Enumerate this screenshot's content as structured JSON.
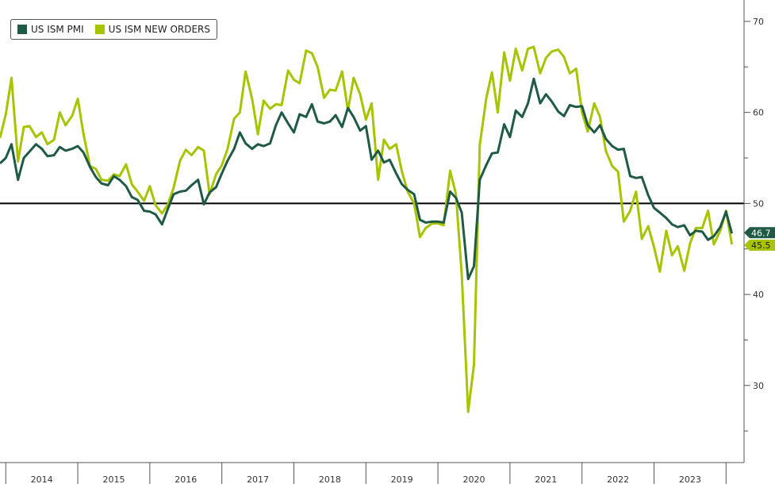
{
  "chart_data": {
    "type": "line",
    "title": "",
    "xlabel": "",
    "ylabel": "",
    "legend_position": "top-left",
    "grid": false,
    "x_tick_labels": [
      "2014",
      "2015",
      "2016",
      "2017",
      "2018",
      "2019",
      "2020",
      "2021",
      "2022",
      "2023"
    ],
    "y_ticks": [
      30,
      40,
      50,
      60,
      70
    ],
    "ylim": [
      23,
      72
    ],
    "xlim": [
      2013.92,
      2024.25
    ],
    "reference_line": 50,
    "series": [
      {
        "name": "US ISM PMI",
        "color": "#1f5a45",
        "last_label": "46.7",
        "values": [
          [
            2013.92,
            54.4
          ],
          [
            2014.0,
            55.0
          ],
          [
            2014.08,
            56.5
          ],
          [
            2014.17,
            52.6
          ],
          [
            2014.25,
            55.0
          ],
          [
            2014.33,
            55.7
          ],
          [
            2014.42,
            56.5
          ],
          [
            2014.5,
            56.0
          ],
          [
            2014.58,
            55.2
          ],
          [
            2014.67,
            55.3
          ],
          [
            2014.75,
            56.2
          ],
          [
            2014.83,
            55.8
          ],
          [
            2014.92,
            56.0
          ],
          [
            2015.0,
            56.3
          ],
          [
            2015.08,
            55.6
          ],
          [
            2015.17,
            54.0
          ],
          [
            2015.25,
            52.9
          ],
          [
            2015.33,
            52.2
          ],
          [
            2015.42,
            52.0
          ],
          [
            2015.5,
            53.0
          ],
          [
            2015.58,
            52.6
          ],
          [
            2015.67,
            51.9
          ],
          [
            2015.75,
            50.7
          ],
          [
            2015.83,
            50.4
          ],
          [
            2015.92,
            49.2
          ],
          [
            2016.0,
            49.1
          ],
          [
            2016.08,
            48.8
          ],
          [
            2016.17,
            47.7
          ],
          [
            2016.25,
            49.4
          ],
          [
            2016.33,
            51.0
          ],
          [
            2016.42,
            51.3
          ],
          [
            2016.5,
            51.4
          ],
          [
            2016.58,
            52.0
          ],
          [
            2016.67,
            52.6
          ],
          [
            2016.75,
            49.9
          ],
          [
            2016.83,
            51.2
          ],
          [
            2016.92,
            51.8
          ],
          [
            2017.0,
            53.3
          ],
          [
            2017.08,
            54.7
          ],
          [
            2017.17,
            56.0
          ],
          [
            2017.25,
            57.8
          ],
          [
            2017.33,
            56.6
          ],
          [
            2017.42,
            56.0
          ],
          [
            2017.5,
            56.5
          ],
          [
            2017.58,
            56.3
          ],
          [
            2017.67,
            56.6
          ],
          [
            2017.75,
            58.6
          ],
          [
            2017.83,
            60.0
          ],
          [
            2017.92,
            58.8
          ],
          [
            2018.0,
            57.8
          ],
          [
            2018.08,
            59.8
          ],
          [
            2018.17,
            59.5
          ],
          [
            2018.25,
            60.9
          ],
          [
            2018.33,
            59.0
          ],
          [
            2018.42,
            58.8
          ],
          [
            2018.5,
            59.0
          ],
          [
            2018.58,
            59.7
          ],
          [
            2018.67,
            58.4
          ],
          [
            2018.75,
            60.5
          ],
          [
            2018.83,
            59.5
          ],
          [
            2018.92,
            58.0
          ],
          [
            2019.0,
            58.5
          ],
          [
            2019.08,
            54.8
          ],
          [
            2019.17,
            55.8
          ],
          [
            2019.25,
            54.5
          ],
          [
            2019.33,
            54.8
          ],
          [
            2019.42,
            53.3
          ],
          [
            2019.5,
            52.1
          ],
          [
            2019.58,
            51.5
          ],
          [
            2019.67,
            51.0
          ],
          [
            2019.75,
            48.2
          ],
          [
            2019.83,
            47.9
          ],
          [
            2019.92,
            48.0
          ],
          [
            2020.0,
            48.0
          ],
          [
            2020.08,
            47.9
          ],
          [
            2020.17,
            51.3
          ],
          [
            2020.25,
            50.6
          ],
          [
            2020.33,
            49.0
          ],
          [
            2020.42,
            41.7
          ],
          [
            2020.5,
            43.1
          ],
          [
            2020.58,
            52.6
          ],
          [
            2020.67,
            54.2
          ],
          [
            2020.75,
            55.5
          ],
          [
            2020.83,
            55.6
          ],
          [
            2020.92,
            58.7
          ],
          [
            2021.0,
            57.3
          ],
          [
            2021.08,
            60.2
          ],
          [
            2021.17,
            59.5
          ],
          [
            2021.25,
            61.0
          ],
          [
            2021.33,
            63.7
          ],
          [
            2021.42,
            61.0
          ],
          [
            2021.5,
            62.0
          ],
          [
            2021.58,
            61.2
          ],
          [
            2021.67,
            60.1
          ],
          [
            2021.75,
            59.6
          ],
          [
            2021.83,
            60.8
          ],
          [
            2021.92,
            60.6
          ],
          [
            2022.0,
            60.7
          ],
          [
            2022.08,
            58.6
          ],
          [
            2022.17,
            57.8
          ],
          [
            2022.25,
            58.6
          ],
          [
            2022.33,
            57.1
          ],
          [
            2022.42,
            56.3
          ],
          [
            2022.5,
            55.9
          ],
          [
            2022.58,
            56.0
          ],
          [
            2022.67,
            53.0
          ],
          [
            2022.75,
            52.8
          ],
          [
            2022.83,
            52.9
          ],
          [
            2022.92,
            50.9
          ],
          [
            2023.0,
            49.5
          ],
          [
            2023.08,
            49.0
          ],
          [
            2023.17,
            48.4
          ],
          [
            2023.25,
            47.7
          ],
          [
            2023.33,
            47.4
          ],
          [
            2023.42,
            47.6
          ],
          [
            2023.5,
            46.5
          ],
          [
            2023.58,
            47.0
          ],
          [
            2023.67,
            46.9
          ],
          [
            2023.75,
            46.0
          ],
          [
            2023.83,
            46.4
          ],
          [
            2023.92,
            47.4
          ],
          [
            2024.0,
            49.1
          ],
          [
            2024.08,
            46.7
          ]
        ]
      },
      {
        "name": "US ISM NEW ORDERS",
        "color": "#a8c400",
        "last_label": "45.5",
        "values": [
          [
            2013.92,
            57.2
          ],
          [
            2014.0,
            59.8
          ],
          [
            2014.08,
            63.8
          ],
          [
            2014.17,
            54.6
          ],
          [
            2014.25,
            58.4
          ],
          [
            2014.33,
            58.5
          ],
          [
            2014.42,
            57.3
          ],
          [
            2014.5,
            57.8
          ],
          [
            2014.58,
            56.5
          ],
          [
            2014.67,
            57.0
          ],
          [
            2014.75,
            60.0
          ],
          [
            2014.83,
            58.6
          ],
          [
            2014.92,
            59.6
          ],
          [
            2015.0,
            61.5
          ],
          [
            2015.08,
            57.6
          ],
          [
            2015.17,
            54.1
          ],
          [
            2015.25,
            53.8
          ],
          [
            2015.33,
            52.6
          ],
          [
            2015.42,
            52.5
          ],
          [
            2015.5,
            53.2
          ],
          [
            2015.58,
            53.0
          ],
          [
            2015.67,
            54.3
          ],
          [
            2015.75,
            52.1
          ],
          [
            2015.83,
            51.3
          ],
          [
            2015.92,
            50.3
          ],
          [
            2016.0,
            51.9
          ],
          [
            2016.08,
            49.8
          ],
          [
            2016.17,
            48.9
          ],
          [
            2016.25,
            49.9
          ],
          [
            2016.33,
            51.7
          ],
          [
            2016.42,
            54.7
          ],
          [
            2016.5,
            55.9
          ],
          [
            2016.58,
            55.3
          ],
          [
            2016.67,
            56.2
          ],
          [
            2016.75,
            55.8
          ],
          [
            2016.83,
            51.0
          ],
          [
            2016.92,
            53.2
          ],
          [
            2017.0,
            54.2
          ],
          [
            2017.08,
            56.0
          ],
          [
            2017.17,
            59.3
          ],
          [
            2017.25,
            60.0
          ],
          [
            2017.33,
            64.5
          ],
          [
            2017.42,
            61.5
          ],
          [
            2017.5,
            57.6
          ],
          [
            2017.58,
            61.3
          ],
          [
            2017.67,
            60.4
          ],
          [
            2017.75,
            60.9
          ],
          [
            2017.83,
            60.8
          ],
          [
            2017.92,
            64.6
          ],
          [
            2018.0,
            63.6
          ],
          [
            2018.08,
            63.2
          ],
          [
            2018.17,
            66.8
          ],
          [
            2018.25,
            66.5
          ],
          [
            2018.33,
            65.0
          ],
          [
            2018.42,
            61.6
          ],
          [
            2018.5,
            62.5
          ],
          [
            2018.58,
            62.4
          ],
          [
            2018.67,
            64.5
          ],
          [
            2018.75,
            60.2
          ],
          [
            2018.83,
            63.8
          ],
          [
            2018.92,
            62.0
          ],
          [
            2019.0,
            59.2
          ],
          [
            2019.08,
            61.0
          ],
          [
            2019.17,
            52.6
          ],
          [
            2019.25,
            57.0
          ],
          [
            2019.33,
            56.0
          ],
          [
            2019.42,
            56.5
          ],
          [
            2019.5,
            53.5
          ],
          [
            2019.58,
            51.3
          ],
          [
            2019.67,
            50.0
          ],
          [
            2019.75,
            46.3
          ],
          [
            2019.83,
            47.3
          ],
          [
            2019.92,
            47.8
          ],
          [
            2020.0,
            47.8
          ],
          [
            2020.08,
            47.6
          ],
          [
            2020.17,
            53.6
          ],
          [
            2020.25,
            51.0
          ],
          [
            2020.33,
            42.2
          ],
          [
            2020.42,
            27.1
          ],
          [
            2020.5,
            32.3
          ],
          [
            2020.58,
            56.4
          ],
          [
            2020.67,
            61.5
          ],
          [
            2020.75,
            64.4
          ],
          [
            2020.83,
            60.0
          ],
          [
            2020.92,
            66.6
          ],
          [
            2021.0,
            63.5
          ],
          [
            2021.08,
            67.0
          ],
          [
            2021.17,
            64.6
          ],
          [
            2021.25,
            67.0
          ],
          [
            2021.33,
            67.2
          ],
          [
            2021.42,
            64.3
          ],
          [
            2021.5,
            66.0
          ],
          [
            2021.58,
            66.7
          ],
          [
            2021.67,
            66.9
          ],
          [
            2021.75,
            66.1
          ],
          [
            2021.83,
            64.3
          ],
          [
            2021.92,
            64.8
          ],
          [
            2022.0,
            60.0
          ],
          [
            2022.08,
            57.9
          ],
          [
            2022.17,
            61.0
          ],
          [
            2022.25,
            59.5
          ],
          [
            2022.33,
            55.8
          ],
          [
            2022.42,
            54.1
          ],
          [
            2022.5,
            53.5
          ],
          [
            2022.58,
            48.0
          ],
          [
            2022.67,
            49.2
          ],
          [
            2022.75,
            51.3
          ],
          [
            2022.83,
            46.1
          ],
          [
            2022.92,
            47.5
          ],
          [
            2023.0,
            45.2
          ],
          [
            2023.08,
            42.5
          ],
          [
            2023.17,
            47.0
          ],
          [
            2023.25,
            44.3
          ],
          [
            2023.33,
            45.3
          ],
          [
            2023.42,
            42.6
          ],
          [
            2023.5,
            45.6
          ],
          [
            2023.58,
            47.3
          ],
          [
            2023.67,
            47.3
          ],
          [
            2023.75,
            49.2
          ],
          [
            2023.83,
            45.5
          ],
          [
            2023.92,
            47.0
          ],
          [
            2024.0,
            49.2
          ],
          [
            2024.08,
            45.5
          ]
        ]
      }
    ]
  }
}
